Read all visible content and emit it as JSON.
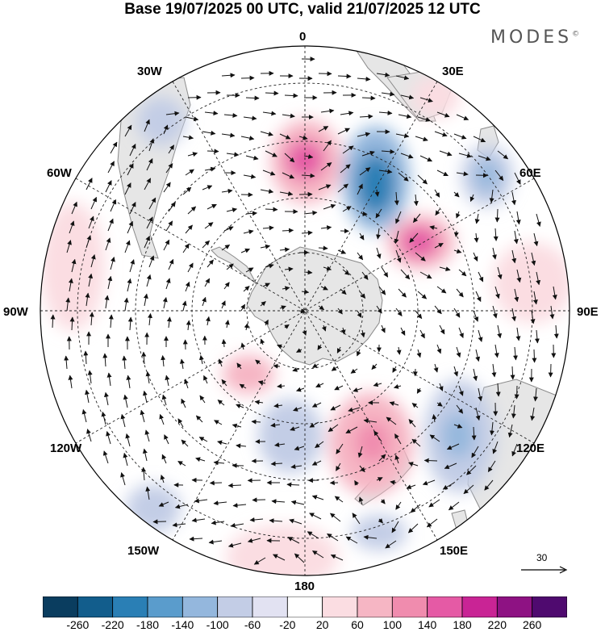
{
  "title": "Base 19/07/2025 00 UTC, valid 21/07/2025 12 UTC",
  "brand": {
    "text": "MODES",
    "mark": "©"
  },
  "map": {
    "projection": "south-polar-stereographic",
    "longitude_labels": {
      "top": "0",
      "top_right": "30E",
      "right_upper": "60E",
      "right": "90E",
      "right_lower": "120E",
      "bottom_right": "150E",
      "bottom": "180",
      "bottom_left": "150W",
      "left_lower": "120W",
      "left": "90W",
      "left_upper": "60W",
      "top_left": "30W"
    },
    "colors": {
      "land": "#e8e8e8",
      "coast": "#888888",
      "grid": "#222222",
      "arrow": "#111111"
    }
  },
  "legend": {
    "reference_vector": {
      "value": "30",
      "icon": "right-arrow-icon"
    },
    "colorbar": {
      "ticks": [
        "-260",
        "-220",
        "-180",
        "-140",
        "-100",
        "-60",
        "-20",
        "20",
        "60",
        "100",
        "140",
        "180",
        "220",
        "260"
      ],
      "colors": [
        "#0a3d5f",
        "#125d8c",
        "#2a7fb5",
        "#5a9ccc",
        "#94b7dd",
        "#c3cde6",
        "#e2e2f2",
        "#ffffff",
        "#fbdde2",
        "#f6b6c4",
        "#f08cae",
        "#e55aa5",
        "#c92495",
        "#8e1283",
        "#4f0a6f"
      ]
    }
  }
}
